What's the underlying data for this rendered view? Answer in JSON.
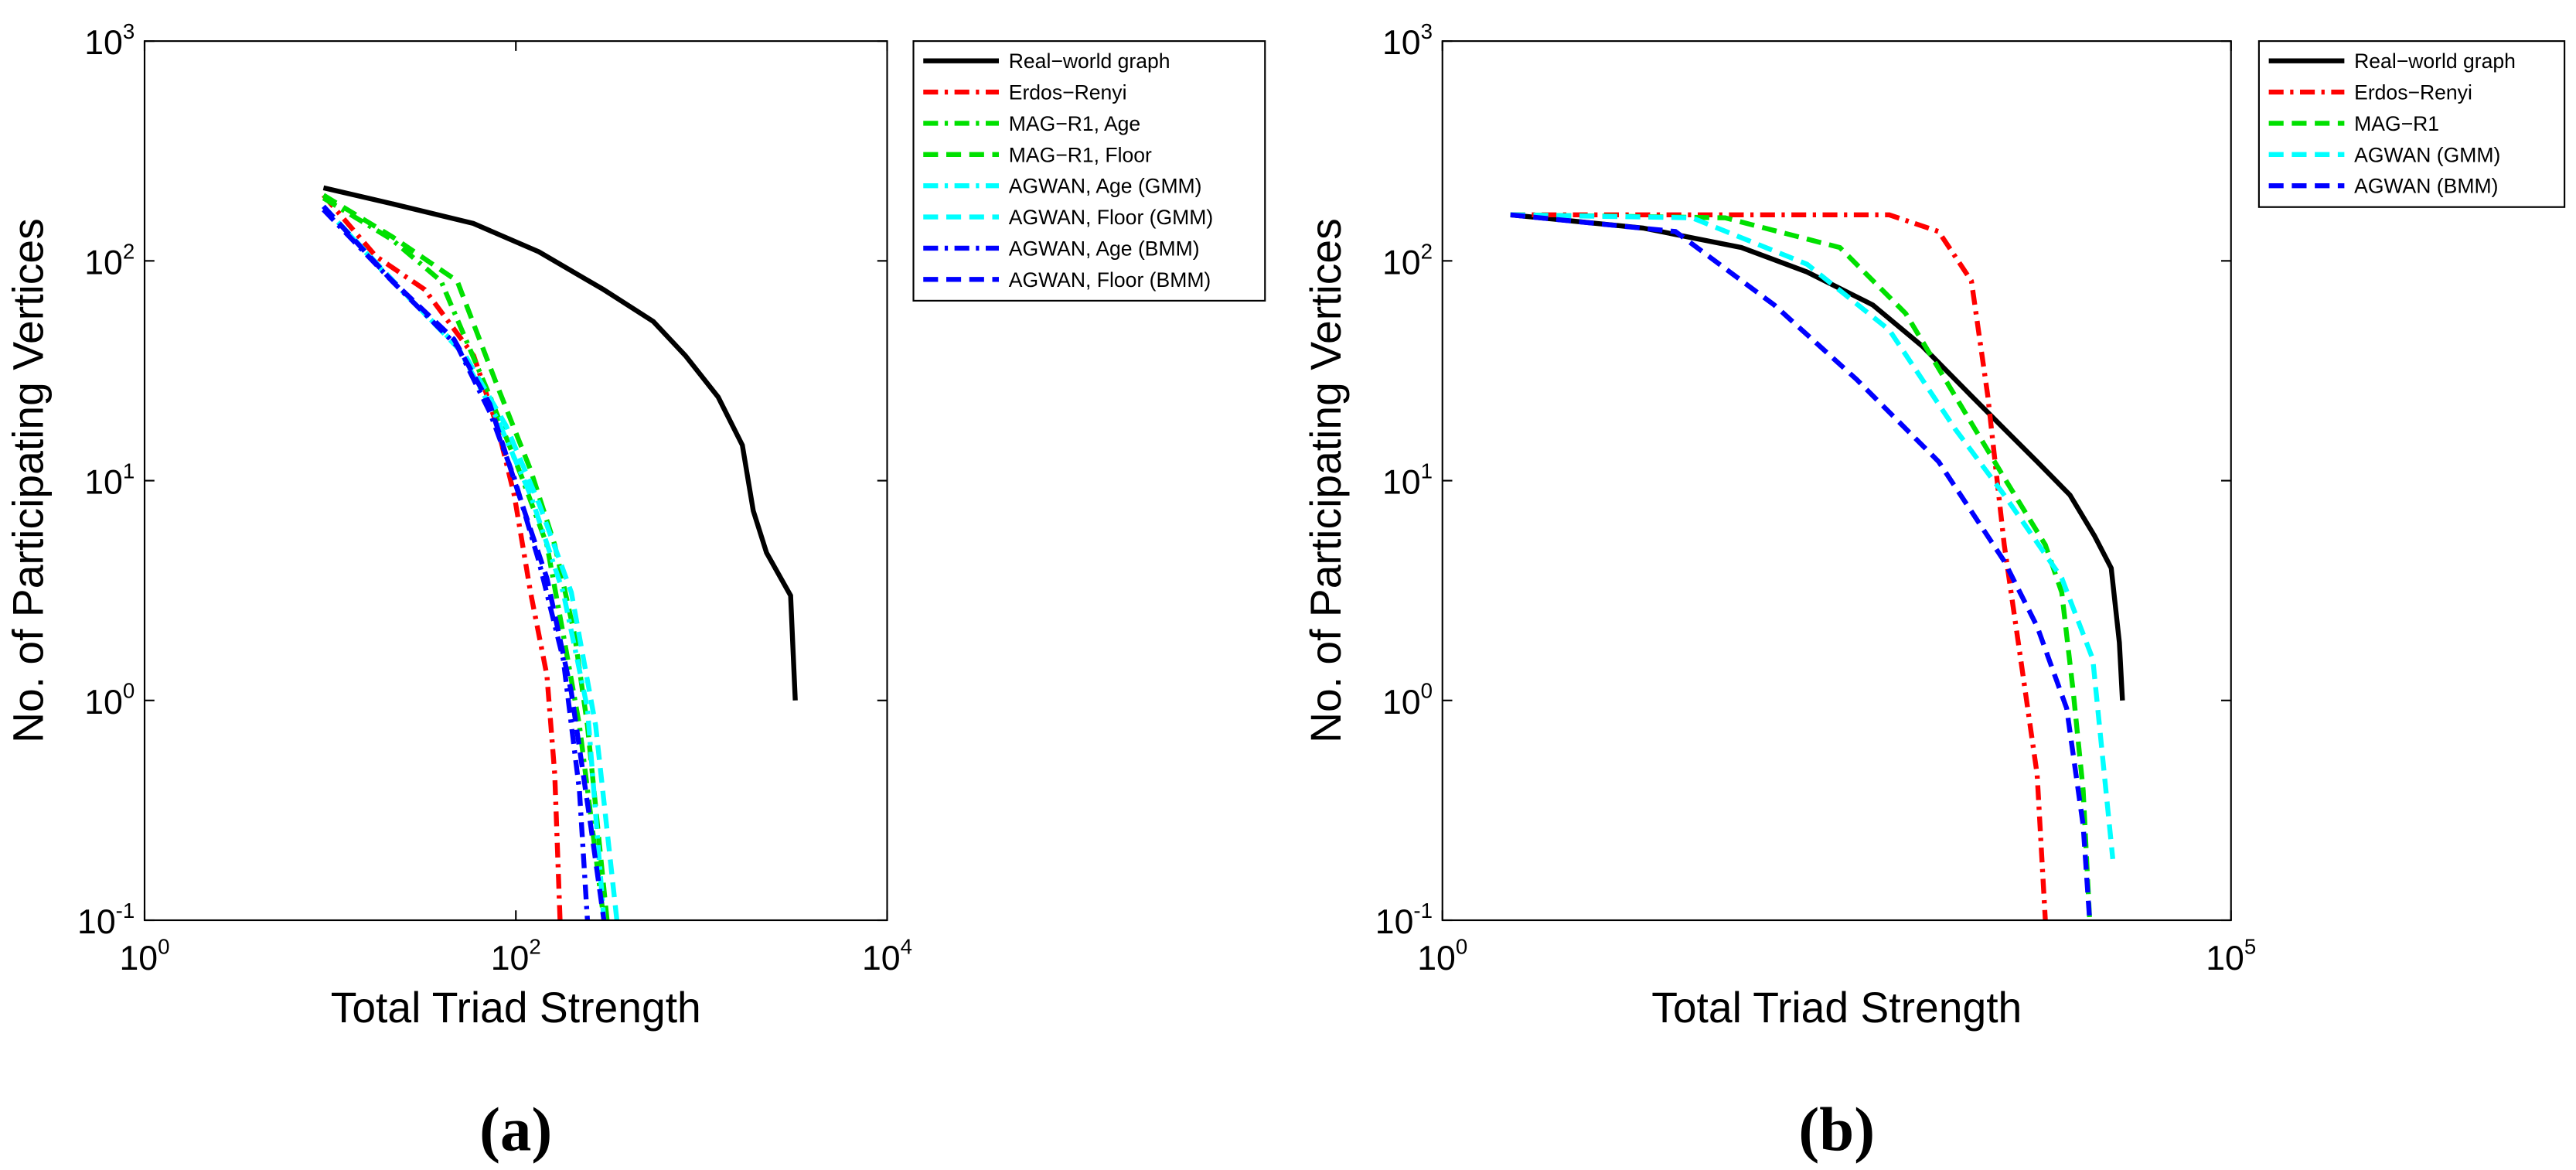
{
  "chart_data": [
    {
      "type": "line",
      "panel": "(a)",
      "xlabel": "Total Triad Strength",
      "ylabel": "No. of Participating Vertices",
      "xscale": "log",
      "yscale": "log",
      "legend": "outside right",
      "xlim": [
        1,
        10000
      ],
      "ylim": [
        0.1,
        1000
      ],
      "xticks": [
        {
          "value": 1,
          "label": "10^0"
        },
        {
          "value": 100,
          "label": "10^2"
        },
        {
          "value": 10000,
          "label": "10^4"
        }
      ],
      "yticks": [
        {
          "value": 0.1,
          "label": "10^-1"
        },
        {
          "value": 1,
          "label": "10^0"
        },
        {
          "value": 10,
          "label": "10^1"
        },
        {
          "value": 100,
          "label": "10^2"
        },
        {
          "value": 1000,
          "label": "10^3"
        }
      ],
      "series": [
        {
          "name": "Real−world graph",
          "color": "#000000",
          "style": "solid",
          "x": [
            9.2,
            21.5,
            59,
            133,
            297,
            550,
            820,
            1230,
            1660,
            1900,
            2240,
            3020,
            3200
          ],
          "values": [
            215,
            182,
            148,
            110,
            74,
            53,
            37,
            24,
            14.5,
            7.3,
            4.7,
            3,
            1
          ]
        },
        {
          "name": "Erdos−Renyi",
          "color": "#ff0000",
          "style": "dashdot",
          "x": [
            9.2,
            17.6,
            32.3,
            59.3,
            80.1,
            98,
            120,
            147,
            162,
            173
          ],
          "values": [
            199,
            105,
            74,
            37,
            17.2,
            8.6,
            3.1,
            1.3,
            0.46,
            0.1
          ]
        },
        {
          "name": "MAG−R1, Age",
          "color": "#00e000",
          "style": "dashdot",
          "x": [
            9.2,
            21.5,
            39.5,
            72.4,
            108,
            147,
            180,
            220,
            298
          ],
          "values": [
            193,
            125,
            81,
            24.3,
            10.3,
            5.1,
            2,
            0.77,
            0.1
          ]
        },
        {
          "name": "MAG−R1, Floor",
          "color": "#00e000",
          "style": "dashed",
          "x": [
            9.2,
            21.5,
            48.3,
            80.1,
            120,
            162,
            207,
            243,
            310
          ],
          "values": [
            199,
            129,
            81,
            26.5,
            11.2,
            5.1,
            2,
            0.77,
            0.1
          ]
        },
        {
          "name": "AGWAN, Age (GMM)",
          "color": "#00ffff",
          "style": "dashdot",
          "x": [
            9.2,
            21.5,
            48.3,
            80.1,
            120,
            180,
            243,
            298
          ],
          "values": [
            177,
            81,
            41,
            18.8,
            8.6,
            3.1,
            0.92,
            0.1
          ]
        },
        {
          "name": "AGWAN, Floor (GMM)",
          "color": "#00ffff",
          "style": "dashed",
          "x": [
            9.2,
            23.8,
            53.5,
            88.5,
            133,
            199,
            269,
            350
          ],
          "values": [
            177,
            75,
            37,
            17.8,
            7.9,
            3.1,
            0.77,
            0.1
          ]
        },
        {
          "name": "AGWAN, Age (BMM)",
          "color": "#0000ff",
          "style": "dashdot",
          "x": [
            9.2,
            21.5,
            48.3,
            72.4,
            98,
            133,
            180,
            220,
            243
          ],
          "values": [
            171,
            81,
            41,
            20.5,
            10.3,
            4.3,
            1.54,
            0.39,
            0.1
          ]
        },
        {
          "name": "AGWAN, Floor (BMM)",
          "color": "#0000ff",
          "style": "dashed",
          "x": [
            9.2,
            20.7,
            46.4,
            72.4,
            104,
            147,
            199,
            253,
            298
          ],
          "values": [
            177,
            84,
            44,
            22.3,
            8.6,
            3.6,
            1.09,
            0.27,
            0.1
          ]
        }
      ]
    },
    {
      "type": "line",
      "panel": "(b)",
      "xlabel": "Total Triad Strength",
      "ylabel": "No. of Participating Vertices",
      "xscale": "log",
      "yscale": "log",
      "legend": "outside right",
      "xlim": [
        1,
        100000
      ],
      "ylim": [
        0.1,
        1000
      ],
      "xticks": [
        {
          "value": 1,
          "label": "10^0"
        },
        {
          "value": 100000,
          "label": "10^5"
        }
      ],
      "yticks": [
        {
          "value": 0.1,
          "label": "10^-1"
        },
        {
          "value": 1,
          "label": "10^0"
        },
        {
          "value": 10,
          "label": "10^1"
        },
        {
          "value": 100,
          "label": "10^2"
        },
        {
          "value": 1000,
          "label": "10^3"
        }
      ],
      "series": [
        {
          "name": "Real−world graph",
          "color": "#000000",
          "style": "solid",
          "x": [
            2.7,
            18.7,
            78.7,
            205,
            536,
            1100,
            2260,
            3650,
            5900,
            9530,
            13650,
            17400,
            19600,
            20500
          ],
          "values": [
            162,
            141,
            115,
            89,
            63,
            41,
            24.3,
            17.2,
            12.2,
            8.6,
            5.6,
            4,
            1.83,
            1
          ]
        },
        {
          "name": "Erdos−Renyi",
          "color": "#ff0000",
          "style": "dashdot",
          "x": [
            2.7,
            62,
            681,
            1400,
            2260,
            2870,
            3650,
            4640,
            5900,
            6650
          ],
          "values": [
            162,
            162,
            162,
            136,
            81,
            24.3,
            5.1,
            1.54,
            0.46,
            0.1
          ]
        },
        {
          "name": "MAG−R1",
          "color": "#00e000",
          "style": "dashed",
          "x": [
            2.7,
            62,
            331,
            866,
            1780,
            3650,
            6650,
            8450,
            10000,
            11550,
            12700
          ],
          "values": [
            162,
            157,
            115,
            57.6,
            24.3,
            10.3,
            5.1,
            3.1,
            1.09,
            0.39,
            0.1
          ]
        },
        {
          "name": "AGWAN (GMM)",
          "color": "#00ffff",
          "style": "dashed",
          "x": [
            2.7,
            38.3,
            205,
            681,
            1780,
            3650,
            8450,
            13300,
            17800
          ],
          "values": [
            162,
            157,
            96.6,
            48.5,
            17.2,
            8.6,
            3.6,
            1.54,
            0.19
          ]
        },
        {
          "name": "AGWAN (BMM)",
          "color": "#0000ff",
          "style": "dashed",
          "x": [
            2.7,
            30,
            127,
            422,
            1400,
            3650,
            5900,
            9080,
            11550,
            12700
          ],
          "values": [
            162,
            136,
            63,
            28.9,
            12.2,
            4.3,
            2.17,
            0.92,
            0.27,
            0.1
          ]
        }
      ]
    }
  ]
}
